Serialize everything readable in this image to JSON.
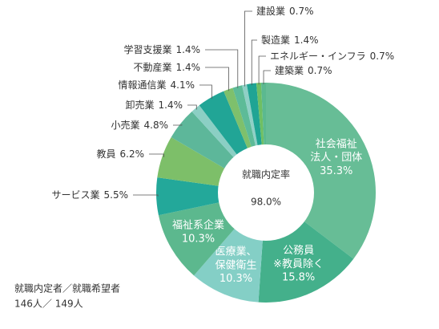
{
  "chart_data": {
    "type": "donut",
    "center_title": "就職内定率",
    "center_value": 98.0,
    "center_value_label": "98.0%",
    "footnote": [
      "就職内定者／就職希望者",
      "146人／ 149人"
    ],
    "categories": [
      "社会福祉\n法人・団体",
      "公務員\n※教員除く",
      "医療業、\n保健衛生",
      "福祉系企業",
      "サービス業",
      "教員",
      "小売業",
      "卸売業",
      "情報通信業",
      "不動産業",
      "学習支援業",
      "建設業",
      "製造業",
      "エネルギー・インフラ",
      "建築業"
    ],
    "values": [
      35.3,
      15.8,
      10.3,
      10.3,
      5.5,
      6.2,
      4.8,
      1.4,
      4.1,
      1.4,
      1.4,
      0.7,
      1.4,
      0.7,
      0.7
    ],
    "value_labels": [
      "35.3%",
      "15.8%",
      "10.3%",
      "10.3%",
      "5.5%",
      "6.2%",
      "4.8%",
      "1.4%",
      "4.1%",
      "1.4%",
      "1.4%",
      "0.7%",
      "1.4%",
      "0.7%",
      "0.7%"
    ],
    "colors": [
      "#67bd96",
      "#44b08b",
      "#84cfc6",
      "#5cb88e",
      "#23a89a",
      "#7dbf69",
      "#5db79a",
      "#8bcfc4",
      "#21a596",
      "#7ec06c",
      "#5dbb98",
      "#8fd0c6",
      "#1fa494",
      "#6fbf63",
      "#5bb990"
    ]
  }
}
